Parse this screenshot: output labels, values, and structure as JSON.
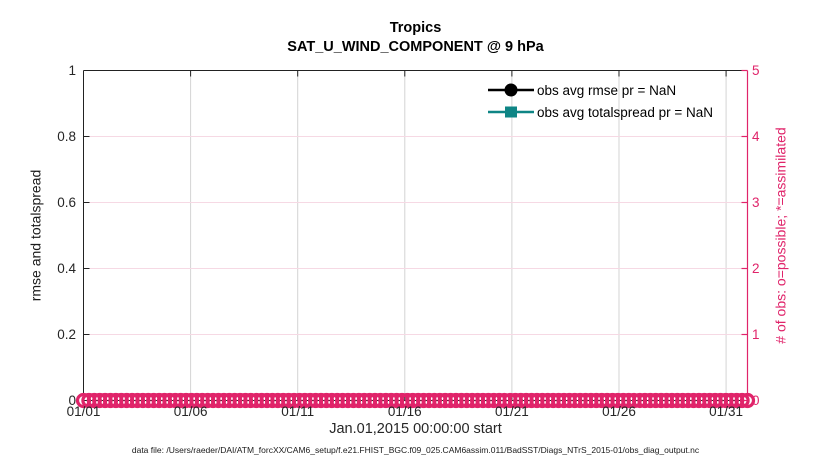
{
  "figure": {
    "title": "Tropics",
    "subtitle": "SAT_U_WIND_COMPONENT @ 9 hPa",
    "xlabel": "Jan.01,2015 00:00:00 start",
    "ylabel_left": "rmse and totalspread",
    "ylabel_right": "# of obs: o=possible; *=assimilated",
    "footer": "data file: /Users/raeder/DAI/ATM_forcXX/CAM6_setup/f.e21.FHIST_BGC.f09_025.CAM6assim.011/BadSST/Diags_NTrS_2015-01/obs_diag_output.nc"
  },
  "colors": {
    "accent_pink": "#e0246a",
    "grid_pink": "#f6d9e4",
    "grid_gray": "#d4d4d4",
    "teal": "#0e8585",
    "axis_dark": "#222222",
    "tick_text": "#262626"
  },
  "chart_data": {
    "type": "line",
    "title": "Tropics",
    "subtitle": "SAT_U_WIND_COMPONENT @ 9 hPa",
    "xlabel": "Jan.01,2015 00:00:00 start",
    "ylabel_left": "rmse and totalspread",
    "ylabel_right": "# of obs: o=possible; *=assimilated",
    "grid": true,
    "legend_position": "top-right-inside",
    "x_axis": {
      "lim_days": [
        1,
        32
      ],
      "tick_days": [
        1,
        6,
        11,
        16,
        21,
        26,
        31
      ],
      "tick_labels": [
        "01/01",
        "01/06",
        "01/11",
        "01/16",
        "01/21",
        "01/26",
        "01/31"
      ]
    },
    "y_left": {
      "lim": [
        0,
        1
      ],
      "ticks": [
        0,
        0.2,
        0.4,
        0.6,
        0.8,
        1
      ],
      "tick_labels": [
        "0",
        "0.2",
        "0.4",
        "0.6",
        "0.8",
        "1"
      ]
    },
    "y_right": {
      "lim": [
        0,
        5
      ],
      "ticks": [
        0,
        1,
        2,
        3,
        4,
        5
      ],
      "tick_labels": [
        "0",
        "1",
        "2",
        "3",
        "4",
        "5"
      ]
    },
    "series": [
      {
        "name": "obs avg rmse pr = NaN",
        "axis": "left",
        "marker": "filled-circle",
        "color": "#000000",
        "values": "all NaN - no curve plotted"
      },
      {
        "name": "obs avg totalspread pr = NaN",
        "axis": "left",
        "marker": "filled-square",
        "color": "#0e8585",
        "values": "all NaN - no curve plotted"
      },
      {
        "name": "# of obs possible (o)",
        "axis": "right",
        "marker": "o",
        "color": "#e0246a",
        "n_points": 124,
        "constant_value": 0
      },
      {
        "name": "# of obs assimilated (*)",
        "axis": "right",
        "marker": "*",
        "color": "#e0246a",
        "n_points": 124,
        "constant_value": 0
      }
    ]
  }
}
